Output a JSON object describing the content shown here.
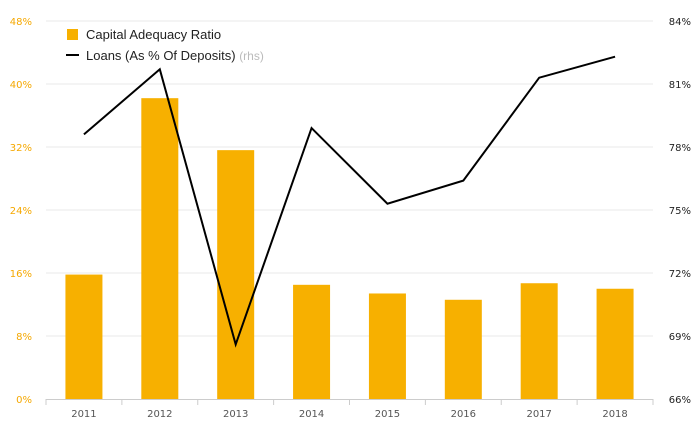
{
  "chart_data": {
    "type": "bar",
    "categories": [
      "2011",
      "2012",
      "2013",
      "2014",
      "2015",
      "2016",
      "2017",
      "2018"
    ],
    "series": [
      {
        "name": "Capital Adequacy Ratio",
        "type": "bar",
        "axis": "left",
        "color": "#f7b000",
        "values": [
          15.8,
          38.2,
          31.6,
          14.5,
          13.4,
          12.6,
          14.7,
          14.0
        ]
      },
      {
        "name": "Loans (As % Of Deposits)",
        "note": "(rhs)",
        "type": "line",
        "axis": "right",
        "color": "#000000",
        "values": [
          78.6,
          81.7,
          68.6,
          78.9,
          75.3,
          76.4,
          81.3,
          82.3
        ]
      }
    ],
    "left_axis": {
      "ylim": [
        0,
        48
      ],
      "ticks": [
        0,
        8,
        16,
        24,
        32,
        40,
        48
      ],
      "tick_labels": [
        "0%",
        "8%",
        "16%",
        "24%",
        "32%",
        "40%",
        "48%"
      ]
    },
    "right_axis": {
      "ylim": [
        66,
        84
      ],
      "ticks": [
        66,
        69,
        72,
        75,
        78,
        81,
        84
      ],
      "tick_labels": [
        "66%",
        "69%",
        "72%",
        "75%",
        "78%",
        "81%",
        "84%"
      ]
    },
    "grid": true,
    "legend_position": "top-left",
    "title": "",
    "xlabel": "",
    "ylabel": ""
  }
}
